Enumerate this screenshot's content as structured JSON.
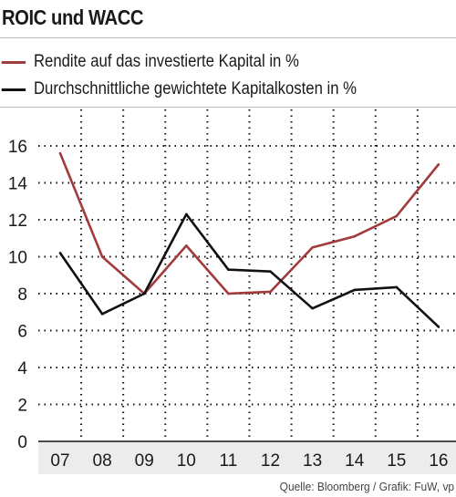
{
  "header": {
    "title": "ROIC und WACC"
  },
  "footer": {
    "source": "Quelle: Bloomberg / Grafik: FuW, vp"
  },
  "colors": {
    "roic": "#a23b3b",
    "wacc": "#111111",
    "grid": "#111111",
    "axis_band": "#ececec"
  },
  "chart_data": {
    "type": "line",
    "title": "ROIC und WACC",
    "xlabel": "",
    "ylabel": "",
    "categories": [
      "07",
      "08",
      "09",
      "10",
      "11",
      "12",
      "13",
      "14",
      "15",
      "16"
    ],
    "ylim": [
      0,
      16
    ],
    "yticks": [
      0,
      2,
      4,
      6,
      8,
      10,
      12,
      14,
      16
    ],
    "grid": "dotted",
    "legend_position": "top-left",
    "series": [
      {
        "name": "Rendite auf das investierte Kapital in %",
        "key": "roic",
        "values": [
          15.6,
          10.0,
          8.0,
          10.6,
          8.0,
          8.1,
          10.5,
          11.1,
          12.2,
          15.0
        ]
      },
      {
        "name": "Durchschnittliche gewichtete Kapitalkosten in %",
        "key": "wacc",
        "values": [
          10.2,
          6.9,
          8.0,
          12.3,
          9.3,
          9.2,
          7.2,
          8.2,
          8.35,
          6.2
        ]
      }
    ]
  }
}
